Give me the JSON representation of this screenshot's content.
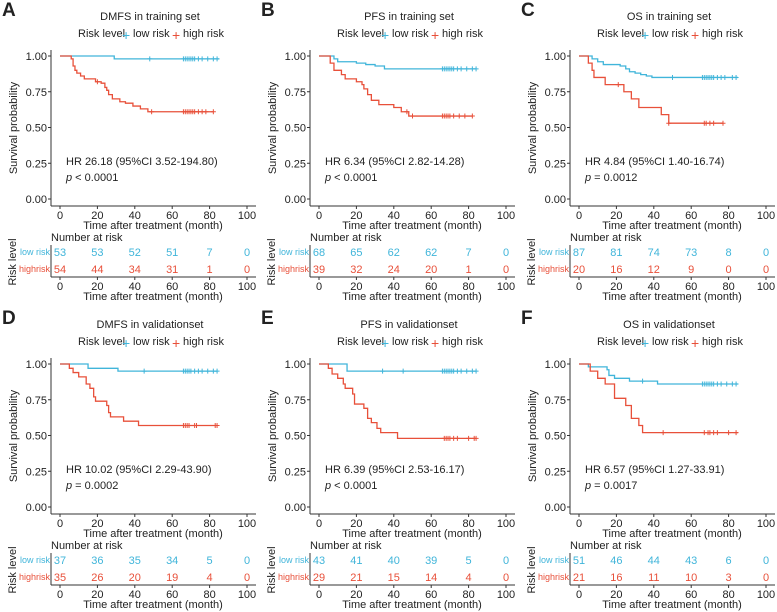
{
  "colors": {
    "low": "#40B5DA",
    "high": "#E8503A",
    "axis": "#333333"
  },
  "chart_data": {
    "type": "line",
    "subtype": "kaplan-meier",
    "xlabel": "Time after treatment (month)",
    "ylabel": "Survival probability",
    "xlim": [
      0,
      100
    ],
    "ylim": [
      0,
      1
    ],
    "xticks": [
      "0",
      "20",
      "40",
      "60",
      "80",
      "100"
    ],
    "yticks": [
      "0.00",
      "0.25",
      "0.50",
      "0.75",
      "1.00"
    ],
    "legend_title": "Risk level",
    "legend_low": "low risk",
    "legend_high": "high risk",
    "risk_table_title": "Number at risk",
    "risk_table_ylabel": "Risk level",
    "risk_row_low": "low risk",
    "risk_row_high": "highrisk",
    "panels": [
      {
        "letter": "A",
        "title": "DMFS in training set",
        "hr": "HR 26.18 (95%CI 3.52-194.80)",
        "p": "< 0.0001",
        "risk_low": [
          53,
          53,
          52,
          51,
          7,
          0
        ],
        "risk_high": [
          54,
          44,
          34,
          31,
          1,
          0
        ],
        "low": [
          [
            0,
            1
          ],
          [
            29,
            0.98
          ],
          [
            85,
            0.98
          ]
        ],
        "high": [
          [
            0,
            1
          ],
          [
            6,
            0.98
          ],
          [
            7,
            0.93
          ],
          [
            8,
            0.9
          ],
          [
            9,
            0.88
          ],
          [
            11,
            0.86
          ],
          [
            13,
            0.84
          ],
          [
            19,
            0.82
          ],
          [
            22,
            0.81
          ],
          [
            24,
            0.78
          ],
          [
            25,
            0.76
          ],
          [
            26,
            0.73
          ],
          [
            28,
            0.7
          ],
          [
            32,
            0.68
          ],
          [
            35,
            0.67
          ],
          [
            39,
            0.65
          ],
          [
            43,
            0.63
          ],
          [
            47,
            0.61
          ],
          [
            82,
            0.61
          ]
        ],
        "censor_low": [
          48,
          66,
          67,
          68,
          69,
          70,
          71,
          72,
          74,
          76,
          79,
          82,
          84
        ],
        "censor_high": [
          20,
          49,
          66,
          67,
          68,
          69,
          70,
          71,
          72,
          74,
          76,
          78,
          82
        ]
      },
      {
        "letter": "B",
        "title": "PFS in training set",
        "hr": "HR 6.34 (95%CI 2.82-14.28)",
        "p": "< 0.0001",
        "risk_low": [
          68,
          65,
          62,
          62,
          7,
          0
        ],
        "risk_high": [
          39,
          32,
          24,
          20,
          1,
          0
        ],
        "low": [
          [
            0,
            1
          ],
          [
            8,
            0.98
          ],
          [
            10,
            0.96
          ],
          [
            20,
            0.95
          ],
          [
            25,
            0.94
          ],
          [
            30,
            0.93
          ],
          [
            35,
            0.91
          ],
          [
            84,
            0.91
          ]
        ],
        "high": [
          [
            0,
            1
          ],
          [
            6,
            0.95
          ],
          [
            8,
            0.9
          ],
          [
            12,
            0.87
          ],
          [
            14,
            0.84
          ],
          [
            20,
            0.82
          ],
          [
            23,
            0.8
          ],
          [
            24,
            0.77
          ],
          [
            26,
            0.73
          ],
          [
            28,
            0.69
          ],
          [
            32,
            0.66
          ],
          [
            40,
            0.64
          ],
          [
            44,
            0.61
          ],
          [
            48,
            0.58
          ],
          [
            82,
            0.58
          ]
        ],
        "censor_low": [
          66,
          67,
          68,
          69,
          70,
          71,
          72,
          74,
          76,
          79,
          82,
          84
        ],
        "censor_high": [
          47,
          50,
          66,
          67,
          68,
          69,
          70,
          72,
          75,
          78,
          82
        ]
      },
      {
        "letter": "C",
        "title": "OS in training set",
        "hr": "HR 4.84 (95%CI 1.40-16.74)",
        "p": "= 0.0012",
        "risk_low": [
          87,
          81,
          74,
          73,
          8,
          0
        ],
        "risk_high": [
          20,
          16,
          12,
          9,
          0,
          0
        ],
        "low": [
          [
            0,
            1
          ],
          [
            7,
            0.98
          ],
          [
            10,
            0.96
          ],
          [
            13,
            0.94
          ],
          [
            22,
            0.93
          ],
          [
            25,
            0.91
          ],
          [
            27,
            0.89
          ],
          [
            30,
            0.88
          ],
          [
            33,
            0.87
          ],
          [
            36,
            0.86
          ],
          [
            39,
            0.85
          ],
          [
            85,
            0.85
          ]
        ],
        "high": [
          [
            0,
            1
          ],
          [
            5,
            0.95
          ],
          [
            7,
            0.9
          ],
          [
            8,
            0.85
          ],
          [
            14,
            0.8
          ],
          [
            24,
            0.75
          ],
          [
            28,
            0.7
          ],
          [
            32,
            0.64
          ],
          [
            44,
            0.59
          ],
          [
            48,
            0.53
          ],
          [
            77,
            0.53
          ]
        ],
        "censor_low": [
          50,
          66,
          67,
          68,
          69,
          70,
          71,
          72,
          74,
          76,
          78,
          82,
          84
        ],
        "censor_high": [
          21,
          48,
          67,
          68,
          70,
          72,
          77
        ]
      },
      {
        "letter": "D",
        "title": "DMFS in validationset",
        "hr": "HR 10.02 (95%CI 2.29-43.90)",
        "p": "= 0.0002",
        "risk_low": [
          37,
          36,
          35,
          34,
          5,
          0
        ],
        "risk_high": [
          35,
          26,
          20,
          19,
          4,
          0
        ],
        "low": [
          [
            0,
            1
          ],
          [
            15,
            0.97
          ],
          [
            31,
            0.95
          ],
          [
            84,
            0.95
          ]
        ],
        "high": [
          [
            0,
            1
          ],
          [
            5,
            0.97
          ],
          [
            7,
            0.94
          ],
          [
            10,
            0.91
          ],
          [
            14,
            0.86
          ],
          [
            16,
            0.83
          ],
          [
            18,
            0.77
          ],
          [
            19,
            0.74
          ],
          [
            25,
            0.71
          ],
          [
            26,
            0.66
          ],
          [
            27,
            0.63
          ],
          [
            34,
            0.6
          ],
          [
            42,
            0.57
          ],
          [
            84,
            0.57
          ]
        ],
        "censor_low": [
          45,
          66,
          67,
          68,
          69,
          70,
          72,
          74,
          76,
          79,
          82,
          84
        ],
        "censor_high": [
          66,
          67,
          68,
          69,
          72,
          73,
          83,
          84
        ]
      },
      {
        "letter": "E",
        "title": "PFS in validationset",
        "hr": "HR 6.39 (95%CI 2.53-16.17)",
        "p": "< 0.0001",
        "risk_low": [
          43,
          41,
          40,
          39,
          5,
          0
        ],
        "risk_high": [
          29,
          21,
          15,
          14,
          4,
          0
        ],
        "low": [
          [
            0,
            1
          ],
          [
            15,
            0.95
          ],
          [
            84,
            0.95
          ]
        ],
        "high": [
          [
            0,
            1
          ],
          [
            5,
            0.97
          ],
          [
            7,
            0.93
          ],
          [
            10,
            0.9
          ],
          [
            13,
            0.86
          ],
          [
            14,
            0.83
          ],
          [
            18,
            0.79
          ],
          [
            19,
            0.72
          ],
          [
            24,
            0.69
          ],
          [
            26,
            0.62
          ],
          [
            28,
            0.59
          ],
          [
            31,
            0.55
          ],
          [
            33,
            0.52
          ],
          [
            42,
            0.48
          ],
          [
            84,
            0.48
          ]
        ],
        "censor_low": [
          34,
          45,
          66,
          67,
          68,
          69,
          70,
          71,
          72,
          74,
          76,
          79,
          82,
          84
        ],
        "censor_high": [
          67,
          68,
          69,
          70,
          72,
          74,
          80,
          83,
          84
        ]
      },
      {
        "letter": "F",
        "title": "OS in validationset",
        "hr": "HR 6.57 (95%CI 1.27-33.91)",
        "p": "= 0.0017",
        "risk_low": [
          51,
          46,
          44,
          43,
          6,
          0
        ],
        "risk_high": [
          21,
          16,
          11,
          10,
          3,
          0
        ],
        "low": [
          [
            0,
            1
          ],
          [
            5,
            0.98
          ],
          [
            15,
            0.96
          ],
          [
            16,
            0.92
          ],
          [
            19,
            0.9
          ],
          [
            27,
            0.88
          ],
          [
            42,
            0.86
          ],
          [
            85,
            0.86
          ]
        ],
        "high": [
          [
            0,
            1
          ],
          [
            6,
            0.95
          ],
          [
            10,
            0.9
          ],
          [
            14,
            0.86
          ],
          [
            19,
            0.76
          ],
          [
            25,
            0.71
          ],
          [
            28,
            0.62
          ],
          [
            32,
            0.57
          ],
          [
            34,
            0.52
          ],
          [
            85,
            0.52
          ]
        ],
        "censor_low": [
          34,
          66,
          67,
          68,
          69,
          70,
          71,
          72,
          74,
          76,
          79,
          82,
          84
        ],
        "censor_high": [
          45,
          67,
          69,
          70,
          72,
          74,
          80,
          84
        ]
      }
    ]
  }
}
